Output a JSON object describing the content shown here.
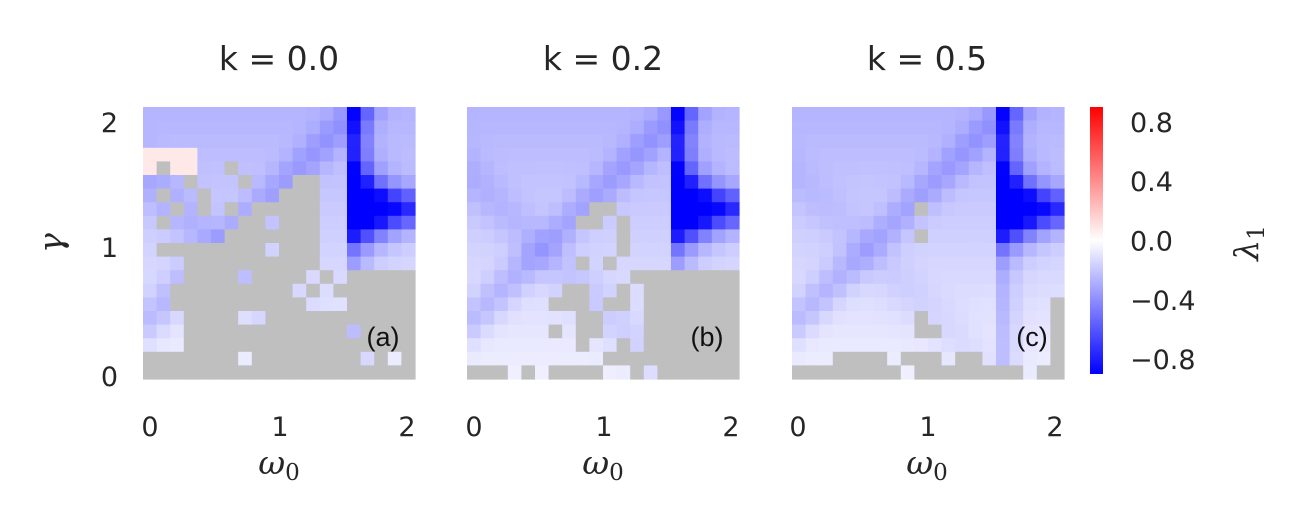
{
  "chart_data": {
    "type": "heatmap",
    "panels": [
      {
        "title": "k = 0.0",
        "panel_label": "(a)",
        "k": 0.0
      },
      {
        "title": "k = 0.2",
        "panel_label": "(b)",
        "k": 0.2
      },
      {
        "title": "k = 0.5",
        "panel_label": "(c)",
        "k": 0.5
      }
    ],
    "xlabel": "ω",
    "xlabel_sub": "0",
    "ylabel": "γ",
    "xlim": [
      0,
      2
    ],
    "ylim": [
      0,
      2
    ],
    "x_ticks": [
      "0",
      "1",
      "2"
    ],
    "y_ticks": [
      "2",
      "1",
      "0"
    ],
    "colorbar": {
      "label": "λ",
      "label_sub": "1",
      "vmin": -0.9,
      "vmax": 0.9,
      "ticks": [
        "0.8",
        "0.4",
        "0.0",
        "−0.4",
        "−0.8"
      ],
      "tick_values": [
        0.8,
        0.4,
        0.0,
        -0.4,
        -0.8
      ],
      "colormap": "bwr"
    },
    "missing_color": "#bfbfbf",
    "grid": false
  }
}
